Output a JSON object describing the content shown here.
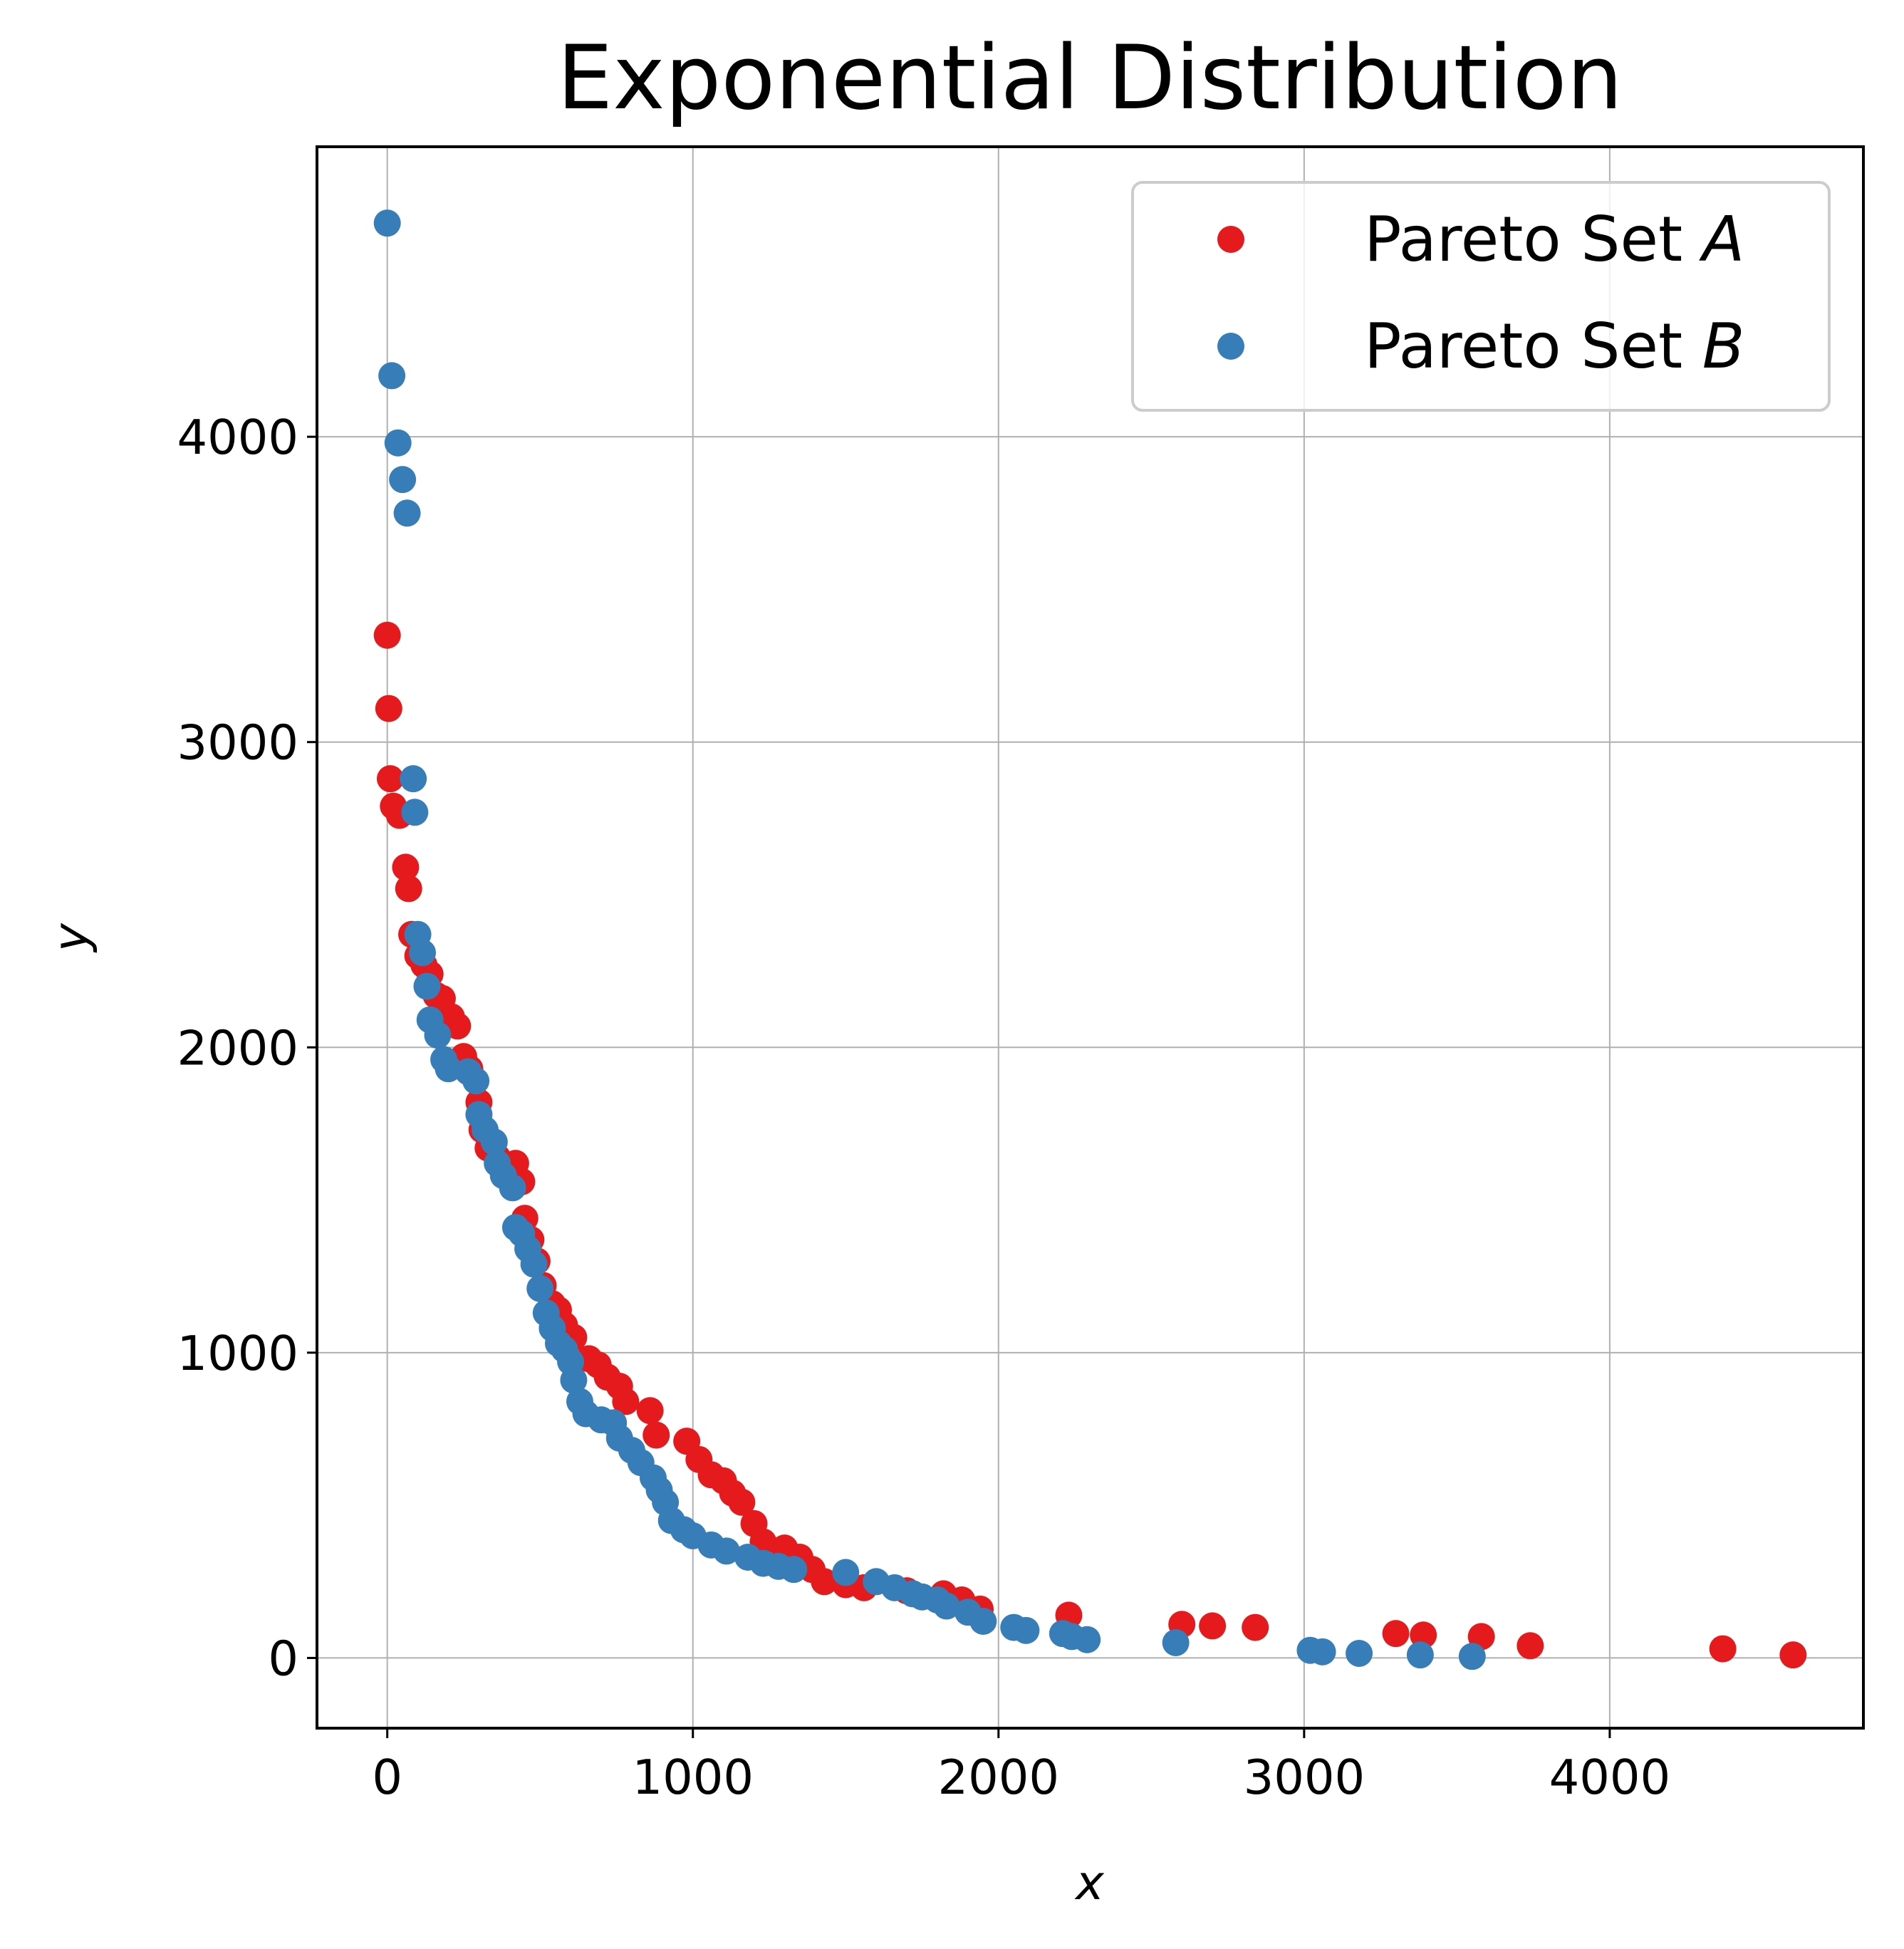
{
  "chart_data": {
    "type": "scatter",
    "title": "Exponential Distribution",
    "xlabel": "x",
    "ylabel": "y",
    "xlim": [
      -230,
      4830
    ],
    "ylim": [
      -230,
      4950
    ],
    "xticks": [
      0,
      1000,
      2000,
      3000,
      4000
    ],
    "yticks": [
      0,
      1000,
      2000,
      3000,
      4000
    ],
    "grid": true,
    "legend_position": "top-right",
    "series": [
      {
        "name": "Pareto Set",
        "name_var": "A",
        "color": "#e41a1c",
        "points": [
          [
            0,
            3350
          ],
          [
            5,
            3110
          ],
          [
            10,
            2880
          ],
          [
            20,
            2790
          ],
          [
            40,
            2760
          ],
          [
            60,
            2590
          ],
          [
            70,
            2520
          ],
          [
            80,
            2370
          ],
          [
            100,
            2300
          ],
          [
            120,
            2270
          ],
          [
            140,
            2240
          ],
          [
            160,
            2170
          ],
          [
            180,
            2160
          ],
          [
            210,
            2100
          ],
          [
            230,
            2070
          ],
          [
            250,
            1970
          ],
          [
            270,
            1930
          ],
          [
            300,
            1820
          ],
          [
            310,
            1730
          ],
          [
            330,
            1670
          ],
          [
            360,
            1640
          ],
          [
            390,
            1590
          ],
          [
            420,
            1620
          ],
          [
            440,
            1560
          ],
          [
            450,
            1440
          ],
          [
            470,
            1370
          ],
          [
            490,
            1300
          ],
          [
            510,
            1220
          ],
          [
            540,
            1160
          ],
          [
            560,
            1140
          ],
          [
            580,
            1090
          ],
          [
            610,
            1050
          ],
          [
            660,
            980
          ],
          [
            690,
            960
          ],
          [
            720,
            920
          ],
          [
            760,
            890
          ],
          [
            780,
            840
          ],
          [
            860,
            810
          ],
          [
            880,
            730
          ],
          [
            980,
            710
          ],
          [
            1020,
            650
          ],
          [
            1060,
            600
          ],
          [
            1100,
            580
          ],
          [
            1130,
            540
          ],
          [
            1160,
            510
          ],
          [
            1200,
            440
          ],
          [
            1230,
            380
          ],
          [
            1300,
            360
          ],
          [
            1350,
            330
          ],
          [
            1390,
            290
          ],
          [
            1430,
            250
          ],
          [
            1500,
            240
          ],
          [
            1560,
            230
          ],
          [
            1700,
            220
          ],
          [
            1820,
            210
          ],
          [
            1880,
            190
          ],
          [
            1940,
            160
          ],
          [
            2230,
            140
          ],
          [
            2600,
            110
          ],
          [
            2700,
            105
          ],
          [
            2840,
            100
          ],
          [
            3300,
            80
          ],
          [
            3390,
            75
          ],
          [
            3580,
            70
          ],
          [
            3740,
            40
          ],
          [
            4370,
            30
          ],
          [
            4600,
            10
          ]
        ]
      },
      {
        "name": "Pareto Set",
        "name_var": "B",
        "color": "#377eb8",
        "points": [
          [
            0,
            4700
          ],
          [
            15,
            4200
          ],
          [
            35,
            3980
          ],
          [
            50,
            3860
          ],
          [
            65,
            3750
          ],
          [
            85,
            2880
          ],
          [
            90,
            2770
          ],
          [
            100,
            2370
          ],
          [
            115,
            2310
          ],
          [
            130,
            2200
          ],
          [
            140,
            2090
          ],
          [
            165,
            2040
          ],
          [
            185,
            1960
          ],
          [
            200,
            1930
          ],
          [
            265,
            1920
          ],
          [
            290,
            1890
          ],
          [
            300,
            1780
          ],
          [
            320,
            1730
          ],
          [
            350,
            1690
          ],
          [
            360,
            1620
          ],
          [
            380,
            1580
          ],
          [
            410,
            1540
          ],
          [
            420,
            1410
          ],
          [
            440,
            1390
          ],
          [
            460,
            1340
          ],
          [
            480,
            1290
          ],
          [
            500,
            1210
          ],
          [
            520,
            1130
          ],
          [
            540,
            1080
          ],
          [
            560,
            1030
          ],
          [
            580,
            1010
          ],
          [
            600,
            970
          ],
          [
            610,
            910
          ],
          [
            630,
            840
          ],
          [
            650,
            800
          ],
          [
            700,
            780
          ],
          [
            740,
            770
          ],
          [
            760,
            720
          ],
          [
            800,
            680
          ],
          [
            830,
            640
          ],
          [
            870,
            590
          ],
          [
            890,
            550
          ],
          [
            910,
            510
          ],
          [
            930,
            450
          ],
          [
            970,
            420
          ],
          [
            1000,
            400
          ],
          [
            1060,
            370
          ],
          [
            1110,
            350
          ],
          [
            1180,
            330
          ],
          [
            1230,
            310
          ],
          [
            1280,
            300
          ],
          [
            1330,
            290
          ],
          [
            1500,
            280
          ],
          [
            1600,
            250
          ],
          [
            1660,
            230
          ],
          [
            1720,
            210
          ],
          [
            1750,
            200
          ],
          [
            1800,
            190
          ],
          [
            1830,
            170
          ],
          [
            1900,
            150
          ],
          [
            1950,
            120
          ],
          [
            2050,
            100
          ],
          [
            2090,
            90
          ],
          [
            2210,
            80
          ],
          [
            2240,
            70
          ],
          [
            2290,
            60
          ],
          [
            2580,
            50
          ],
          [
            3020,
            25
          ],
          [
            3060,
            20
          ],
          [
            3180,
            15
          ],
          [
            3380,
            10
          ],
          [
            3550,
            5
          ]
        ]
      }
    ]
  }
}
